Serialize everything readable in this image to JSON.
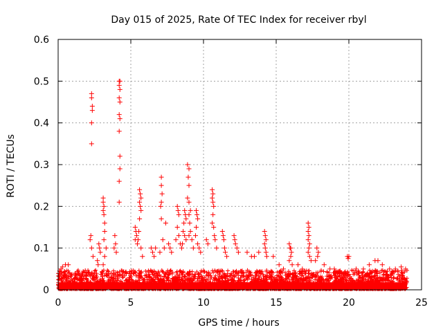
{
  "chart_data": {
    "type": "scatter",
    "title": "Day 015 of 2025, Rate Of TEC Index for receiver rbyl",
    "xlabel": "GPS time / hours",
    "ylabel": "ROTI / TECUs",
    "xlim": [
      0,
      25
    ],
    "ylim": [
      0,
      0.6
    ],
    "xticks": [
      0,
      5,
      10,
      15,
      20,
      25
    ],
    "yticks": [
      0,
      0.1,
      0.2,
      0.3,
      0.4,
      0.5,
      0.6
    ],
    "grid": true,
    "marker": "+",
    "series": [
      {
        "name": "ROTI",
        "color": "#ff0000",
        "points": [
          [
            2.3,
            0.47
          ],
          [
            2.3,
            0.46
          ],
          [
            2.35,
            0.44
          ],
          [
            2.35,
            0.43
          ],
          [
            2.3,
            0.4
          ],
          [
            2.3,
            0.35
          ],
          [
            2.25,
            0.13
          ],
          [
            2.2,
            0.12
          ],
          [
            2.3,
            0.1
          ],
          [
            2.4,
            0.08
          ],
          [
            2.8,
            0.11
          ],
          [
            2.85,
            0.1
          ],
          [
            2.9,
            0.09
          ],
          [
            2.7,
            0.07
          ],
          [
            2.75,
            0.06
          ],
          [
            3.1,
            0.22
          ],
          [
            3.1,
            0.21
          ],
          [
            3.15,
            0.2
          ],
          [
            3.1,
            0.19
          ],
          [
            3.15,
            0.18
          ],
          [
            3.2,
            0.16
          ],
          [
            3.2,
            0.14
          ],
          [
            3.15,
            0.12
          ],
          [
            3.3,
            0.1
          ],
          [
            3.2,
            0.08
          ],
          [
            3.1,
            0.06
          ],
          [
            3.9,
            0.13
          ],
          [
            3.95,
            0.11
          ],
          [
            3.85,
            0.1
          ],
          [
            4.0,
            0.09
          ],
          [
            4.2,
            0.5
          ],
          [
            4.25,
            0.5
          ],
          [
            4.2,
            0.49
          ],
          [
            4.25,
            0.48
          ],
          [
            4.2,
            0.46
          ],
          [
            4.25,
            0.45
          ],
          [
            4.2,
            0.42
          ],
          [
            4.25,
            0.41
          ],
          [
            4.2,
            0.38
          ],
          [
            4.25,
            0.32
          ],
          [
            4.25,
            0.29
          ],
          [
            4.2,
            0.26
          ],
          [
            4.2,
            0.21
          ],
          [
            5.3,
            0.15
          ],
          [
            5.35,
            0.14
          ],
          [
            5.4,
            0.13
          ],
          [
            5.3,
            0.12
          ],
          [
            5.45,
            0.11
          ],
          [
            5.6,
            0.24
          ],
          [
            5.65,
            0.23
          ],
          [
            5.7,
            0.22
          ],
          [
            5.6,
            0.21
          ],
          [
            5.65,
            0.2
          ],
          [
            5.7,
            0.19
          ],
          [
            5.6,
            0.17
          ],
          [
            5.55,
            0.14
          ],
          [
            5.5,
            0.12
          ],
          [
            5.7,
            0.1
          ],
          [
            5.8,
            0.08
          ],
          [
            6.4,
            0.1
          ],
          [
            6.5,
            0.09
          ],
          [
            6.6,
            0.08
          ],
          [
            6.7,
            0.1
          ],
          [
            7.1,
            0.27
          ],
          [
            7.1,
            0.25
          ],
          [
            7.15,
            0.23
          ],
          [
            7.1,
            0.21
          ],
          [
            7.05,
            0.2
          ],
          [
            7.1,
            0.17
          ],
          [
            7.2,
            0.12
          ],
          [
            7.3,
            0.1
          ],
          [
            7.0,
            0.09
          ],
          [
            7.4,
            0.16
          ],
          [
            7.6,
            0.11
          ],
          [
            7.7,
            0.1
          ],
          [
            7.8,
            0.09
          ],
          [
            8.2,
            0.2
          ],
          [
            8.25,
            0.19
          ],
          [
            8.3,
            0.18
          ],
          [
            8.2,
            0.15
          ],
          [
            8.3,
            0.13
          ],
          [
            8.1,
            0.12
          ],
          [
            8.4,
            0.11
          ],
          [
            8.5,
            0.1
          ],
          [
            8.7,
            0.19
          ],
          [
            8.75,
            0.18
          ],
          [
            8.8,
            0.17
          ],
          [
            8.65,
            0.16
          ],
          [
            8.6,
            0.14
          ],
          [
            8.7,
            0.13
          ],
          [
            8.8,
            0.12
          ],
          [
            8.55,
            0.11
          ],
          [
            8.9,
            0.3
          ],
          [
            9.0,
            0.29
          ],
          [
            8.95,
            0.27
          ],
          [
            9.0,
            0.25
          ],
          [
            8.9,
            0.22
          ],
          [
            9.0,
            0.21
          ],
          [
            9.1,
            0.19
          ],
          [
            9.0,
            0.18
          ],
          [
            9.05,
            0.16
          ],
          [
            9.1,
            0.14
          ],
          [
            9.0,
            0.13
          ],
          [
            9.2,
            0.12
          ],
          [
            9.3,
            0.1
          ],
          [
            9.5,
            0.19
          ],
          [
            9.55,
            0.18
          ],
          [
            9.6,
            0.17
          ],
          [
            9.5,
            0.15
          ],
          [
            9.45,
            0.13
          ],
          [
            9.6,
            0.11
          ],
          [
            9.7,
            0.1
          ],
          [
            9.8,
            0.09
          ],
          [
            10.2,
            0.12
          ],
          [
            10.3,
            0.11
          ],
          [
            10.6,
            0.24
          ],
          [
            10.65,
            0.23
          ],
          [
            10.6,
            0.22
          ],
          [
            10.65,
            0.21
          ],
          [
            10.7,
            0.2
          ],
          [
            10.65,
            0.18
          ],
          [
            10.6,
            0.16
          ],
          [
            10.7,
            0.15
          ],
          [
            10.75,
            0.13
          ],
          [
            10.8,
            0.12
          ],
          [
            10.9,
            0.1
          ],
          [
            11.3,
            0.14
          ],
          [
            11.35,
            0.13
          ],
          [
            11.4,
            0.12
          ],
          [
            11.45,
            0.1
          ],
          [
            11.5,
            0.09
          ],
          [
            11.6,
            0.08
          ],
          [
            12.1,
            0.13
          ],
          [
            12.15,
            0.12
          ],
          [
            12.2,
            0.11
          ],
          [
            12.3,
            0.1
          ],
          [
            12.4,
            0.09
          ],
          [
            13.0,
            0.09
          ],
          [
            13.3,
            0.08
          ],
          [
            13.5,
            0.08
          ],
          [
            13.8,
            0.09
          ],
          [
            14.2,
            0.14
          ],
          [
            14.25,
            0.13
          ],
          [
            14.3,
            0.12
          ],
          [
            14.2,
            0.11
          ],
          [
            14.25,
            0.1
          ],
          [
            14.3,
            0.09
          ],
          [
            14.35,
            0.08
          ],
          [
            14.8,
            0.08
          ],
          [
            15.2,
            0.06
          ],
          [
            15.5,
            0.05
          ],
          [
            15.9,
            0.11
          ],
          [
            15.95,
            0.1
          ],
          [
            16.0,
            0.1
          ],
          [
            16.05,
            0.09
          ],
          [
            16.0,
            0.08
          ],
          [
            15.9,
            0.07
          ],
          [
            16.1,
            0.06
          ],
          [
            16.5,
            0.06
          ],
          [
            16.8,
            0.05
          ],
          [
            17.2,
            0.16
          ],
          [
            17.25,
            0.15
          ],
          [
            17.2,
            0.14
          ],
          [
            17.25,
            0.13
          ],
          [
            17.2,
            0.12
          ],
          [
            17.3,
            0.11
          ],
          [
            17.25,
            0.1
          ],
          [
            17.2,
            0.09
          ],
          [
            17.3,
            0.08
          ],
          [
            17.4,
            0.07
          ],
          [
            17.8,
            0.1
          ],
          [
            17.9,
            0.09
          ],
          [
            17.85,
            0.08
          ],
          [
            17.7,
            0.07
          ],
          [
            18.3,
            0.06
          ],
          [
            18.7,
            0.05
          ],
          [
            19.0,
            0.05
          ],
          [
            19.5,
            0.04
          ],
          [
            19.9,
            0.08
          ],
          [
            19.95,
            0.075
          ],
          [
            20.0,
            0.08
          ],
          [
            20.5,
            0.05
          ],
          [
            21.0,
            0.05
          ],
          [
            21.4,
            0.06
          ],
          [
            21.8,
            0.07
          ],
          [
            22.0,
            0.07
          ],
          [
            22.3,
            0.06
          ],
          [
            22.8,
            0.05
          ],
          [
            23.2,
            0.05
          ],
          [
            23.6,
            0.055
          ],
          [
            23.9,
            0.05
          ],
          [
            0.3,
            0.055
          ],
          [
            0.5,
            0.06
          ],
          [
            0.7,
            0.06
          ],
          [
            0.2,
            0.05
          ],
          [
            0.1,
            0.045
          ]
        ]
      }
    ]
  }
}
